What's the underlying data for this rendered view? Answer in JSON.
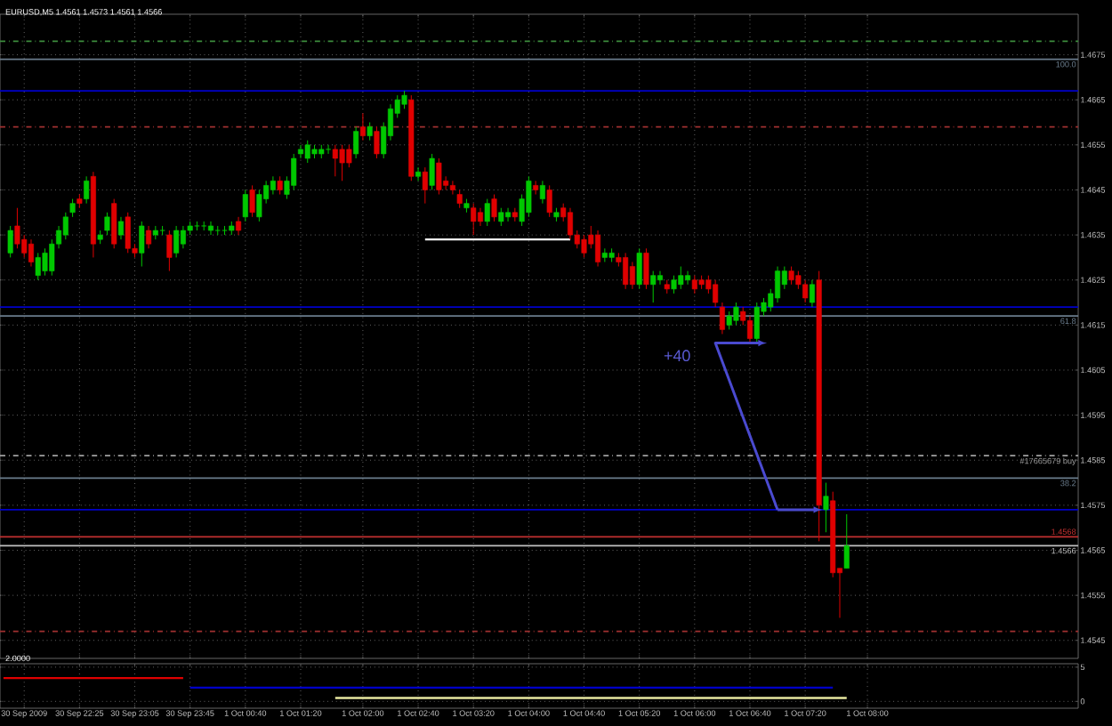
{
  "chart_data": [
    {
      "type": "candlestick",
      "title": "EURUSD,M5 1.4561 1.4573 1.4561 1.4566",
      "categories": [
        null,
        null,
        null,
        null,
        null,
        null,
        null,
        null,
        null,
        null,
        null,
        null,
        null,
        null,
        null,
        null,
        null,
        null,
        null,
        null,
        null,
        null,
        null,
        null,
        null,
        null,
        null,
        null,
        null,
        null,
        null,
        null,
        null,
        null,
        null,
        null,
        null,
        null,
        null,
        null,
        null,
        null,
        null,
        null,
        null,
        null,
        null,
        null,
        null,
        null,
        null,
        null,
        null,
        null,
        null,
        null,
        null,
        null,
        null,
        null,
        null,
        null,
        null,
        null,
        null,
        null,
        null,
        null,
        null,
        null,
        null,
        null,
        null,
        null,
        null,
        null,
        null,
        null,
        null,
        null,
        null,
        null,
        null,
        null,
        null,
        null,
        null,
        null,
        null,
        null,
        null,
        null,
        null,
        null,
        null,
        null,
        null,
        null,
        null,
        null,
        null,
        null,
        null,
        null,
        null,
        null,
        null,
        null,
        null,
        null,
        null,
        null,
        null,
        null,
        null,
        null,
        null,
        null,
        null,
        null,
        null,
        null,
        null,
        null,
        null,
        null,
        null,
        null,
        null,
        null,
        null,
        null,
        null,
        null,
        null,
        null,
        null,
        null,
        null,
        null,
        null,
        null,
        null,
        null,
        null,
        null,
        null,
        null,
        null,
        null,
        null,
        null,
        null,
        null,
        null,
        null
      ],
      "ohlc": [
        null,
        [
          1.4631,
          1.4637,
          1.463,
          1.4636
        ],
        [
          1.4637,
          1.4641,
          1.4632,
          1.4633
        ],
        [
          1.4634,
          1.4635,
          1.463,
          1.4631
        ],
        [
          1.4633,
          1.4634,
          1.4628,
          1.4629
        ],
        [
          1.4626,
          1.4631,
          1.4625,
          1.463
        ],
        [
          1.4627,
          1.4632,
          1.4626,
          1.4631
        ],
        [
          1.4627,
          1.4634,
          1.4626,
          1.4633
        ],
        [
          1.4633,
          1.4637,
          1.4632,
          1.4636
        ],
        [
          1.4635,
          1.464,
          1.4634,
          1.4639
        ],
        [
          1.464,
          1.4643,
          1.4639,
          1.4642
        ],
        [
          1.4643,
          1.4644,
          1.4641,
          1.4642
        ],
        [
          1.4643,
          1.4648,
          1.4642,
          1.4647
        ],
        [
          1.4648,
          1.4649,
          1.463,
          1.4633
        ],
        [
          1.4634,
          1.4636,
          1.4633,
          1.4635
        ],
        [
          1.4636,
          1.464,
          1.4635,
          1.4639
        ],
        [
          1.4642,
          1.4643,
          1.4632,
          1.4633
        ],
        [
          1.4635,
          1.4639,
          1.4634,
          1.4638
        ],
        [
          1.4639,
          1.464,
          1.4631,
          1.4632
        ],
        [
          1.4632,
          1.4633,
          1.463,
          1.4631
        ],
        [
          1.4631,
          1.4638,
          1.4628,
          1.4637
        ],
        [
          1.4636,
          1.4637,
          1.4632,
          1.4633
        ],
        [
          1.4635,
          1.4637,
          1.4634,
          1.4636
        ],
        [
          1.4636,
          1.4637,
          1.4635,
          1.4636
        ],
        [
          1.4635,
          1.4636,
          1.4627,
          1.463
        ],
        [
          1.4631,
          1.4637,
          1.463,
          1.4636
        ],
        [
          1.4633,
          1.4637,
          1.4632,
          1.4636
        ],
        [
          1.4636,
          1.4638,
          1.4635,
          1.4637
        ],
        [
          1.4637,
          1.4638,
          1.4636,
          1.4637
        ],
        [
          1.4637,
          1.4638,
          1.4636,
          1.4637
        ],
        [
          1.4636,
          1.4638,
          1.4635,
          1.4637
        ],
        [
          1.4636,
          1.4637,
          1.4635,
          1.4636
        ],
        [
          1.4636,
          1.4637,
          1.4635,
          1.4636
        ],
        [
          1.4636,
          1.4638,
          1.4635,
          1.4637
        ],
        [
          1.4638,
          1.4639,
          1.4635,
          1.4636
        ],
        [
          1.4639,
          1.4645,
          1.4638,
          1.4644
        ],
        [
          1.4645,
          1.4646,
          1.4639,
          1.464
        ],
        [
          1.4639,
          1.4645,
          1.4638,
          1.4644
        ],
        [
          1.4643,
          1.4647,
          1.4642,
          1.4646
        ],
        [
          1.4645,
          1.4648,
          1.4644,
          1.4647
        ],
        [
          1.4647,
          1.4648,
          1.4644,
          1.4645
        ],
        [
          1.4644,
          1.4648,
          1.4643,
          1.4647
        ],
        [
          1.4646,
          1.4653,
          1.4645,
          1.4652
        ],
        [
          1.4653,
          1.4655,
          1.4652,
          1.4654
        ],
        [
          1.4652,
          1.4656,
          1.4651,
          1.4655
        ],
        [
          1.4653,
          1.4655,
          1.4652,
          1.4654
        ],
        [
          1.4653,
          1.4655,
          1.4652,
          1.4654
        ],
        [
          1.4654,
          1.4655,
          1.4653,
          1.4654
        ],
        [
          1.4654,
          1.4655,
          1.4648,
          1.4652
        ],
        [
          1.4654,
          1.4655,
          1.4647,
          1.4651
        ],
        [
          1.4654,
          1.4655,
          1.465,
          1.4651
        ],
        [
          1.4653,
          1.4659,
          1.4652,
          1.4658
        ],
        [
          1.4659,
          1.4662,
          1.4656,
          1.4657
        ],
        [
          1.4657,
          1.466,
          1.4656,
          1.4659
        ],
        [
          1.4658,
          1.4659,
          1.4652,
          1.4653
        ],
        [
          1.4653,
          1.466,
          1.4652,
          1.4659
        ],
        [
          1.4657,
          1.4664,
          1.4656,
          1.4663
        ],
        [
          1.4662,
          1.4666,
          1.4661,
          1.4665
        ],
        [
          1.4664,
          1.4667,
          1.4663,
          1.4666
        ],
        [
          1.4665,
          1.4666,
          1.4647,
          1.4648
        ],
        [
          1.4648,
          1.465,
          1.4647,
          1.4649
        ],
        [
          1.4649,
          1.465,
          1.4642,
          1.4645
        ],
        [
          1.4646,
          1.4653,
          1.4645,
          1.4652
        ],
        [
          1.4651,
          1.4652,
          1.4644,
          1.4645
        ],
        [
          1.4647,
          1.4648,
          1.4645,
          1.4646
        ],
        [
          1.4646,
          1.4647,
          1.4644,
          1.4645
        ],
        [
          1.4644,
          1.4645,
          1.4641,
          1.4642
        ],
        [
          1.4641,
          1.4643,
          1.464,
          1.4642
        ],
        [
          1.4641,
          1.4642,
          1.4635,
          1.4638
        ],
        [
          1.464,
          1.4641,
          1.4637,
          1.4638
        ],
        [
          1.4638,
          1.4643,
          1.4637,
          1.4642
        ],
        [
          1.4643,
          1.4644,
          1.4638,
          1.4639
        ],
        [
          1.4638,
          1.4641,
          1.4637,
          1.464
        ],
        [
          1.4639,
          1.4641,
          1.4638,
          1.464
        ],
        [
          1.464,
          1.4641,
          1.4638,
          1.4639
        ],
        [
          1.4638,
          1.4644,
          1.4637,
          1.4643
        ],
        [
          1.464,
          1.4648,
          1.4639,
          1.4647
        ],
        [
          1.4646,
          1.4647,
          1.4644,
          1.4645
        ],
        [
          1.4643,
          1.4647,
          1.4642,
          1.4646
        ],
        [
          1.4645,
          1.4646,
          1.4639,
          1.464
        ],
        [
          1.4639,
          1.4641,
          1.4638,
          1.464
        ],
        [
          1.4641,
          1.4642,
          1.4638,
          1.4639
        ],
        [
          1.464,
          1.4641,
          1.4634,
          1.4635
        ],
        [
          1.4635,
          1.4636,
          1.4632,
          1.4633
        ],
        [
          1.4634,
          1.4635,
          1.463,
          1.4631
        ],
        [
          1.4635,
          1.4637,
          1.4632,
          1.4633
        ],
        [
          1.4635,
          1.4636,
          1.4628,
          1.4629
        ],
        [
          1.463,
          1.4632,
          1.4629,
          1.4631
        ],
        [
          1.463,
          1.4632,
          1.4629,
          1.4631
        ],
        [
          1.463,
          1.4631,
          1.4628,
          1.4629
        ],
        [
          1.463,
          1.4631,
          1.4623,
          1.4624
        ],
        [
          1.4628,
          1.4629,
          1.4623,
          1.4624
        ],
        [
          1.4624,
          1.4632,
          1.4623,
          1.4631
        ],
        [
          1.4631,
          1.4632,
          1.4623,
          1.4624
        ],
        [
          1.4624,
          1.4627,
          1.462,
          1.4626
        ],
        [
          1.4625,
          1.4627,
          1.4624,
          1.4626
        ],
        [
          1.4624,
          1.4625,
          1.4622,
          1.4623
        ],
        [
          1.4623,
          1.4626,
          1.4622,
          1.4625
        ],
        [
          1.4624,
          1.4628,
          1.4623,
          1.4626
        ],
        [
          1.4625,
          1.4627,
          1.4624,
          1.4626
        ],
        [
          1.4625,
          1.4626,
          1.4622,
          1.4623
        ],
        [
          1.4625,
          1.4626,
          1.4623,
          1.4624
        ],
        [
          1.4625,
          1.4626,
          1.4622,
          1.4623
        ],
        [
          1.4624,
          1.4625,
          1.4619,
          1.462
        ],
        [
          1.4619,
          1.462,
          1.4613,
          1.4614
        ],
        [
          1.4615,
          1.4618,
          1.4614,
          1.4617
        ],
        [
          1.4616,
          1.462,
          1.4615,
          1.4619
        ],
        [
          1.4618,
          1.4619,
          1.4615,
          1.4616
        ],
        [
          1.4616,
          1.4617,
          1.4611,
          1.4612
        ],
        [
          1.4612,
          1.462,
          1.4611,
          1.4619
        ],
        [
          1.4618,
          1.4621,
          1.4617,
          1.462
        ],
        [
          1.4619,
          1.4623,
          1.4618,
          1.4622
        ],
        [
          1.4621,
          1.4628,
          1.462,
          1.4627
        ],
        [
          1.4624,
          1.4628,
          1.4623,
          1.4627
        ],
        [
          1.4627,
          1.4628,
          1.4624,
          1.4625
        ],
        [
          1.4626,
          1.4627,
          1.4623,
          1.4624
        ],
        [
          1.4624,
          1.4625,
          1.462,
          1.4621
        ],
        [
          1.462,
          1.4625,
          1.4619,
          1.4624
        ],
        [
          1.4625,
          1.4627,
          1.4567,
          1.4575
        ],
        [
          1.4574,
          1.458,
          1.4569,
          1.4577
        ],
        [
          1.4576,
          1.4578,
          1.4559,
          1.456
        ],
        [
          1.4561,
          1.4561,
          1.455,
          1.456
        ],
        [
          1.4561,
          1.4573,
          1.4561,
          1.4566
        ],
        null,
        null,
        null,
        null,
        null,
        null,
        null,
        null,
        null,
        null,
        null,
        null,
        null,
        null,
        null,
        null,
        null,
        null,
        null,
        null,
        null,
        null,
        null,
        null,
        null,
        null,
        null,
        null,
        null,
        null,
        null,
        null,
        null
      ],
      "colors": [
        null,
        "#00c800",
        "#e00000",
        "#e00000",
        "#e00000",
        "#00c800",
        "#00c800",
        "#00c800",
        "#00c800",
        "#00c800",
        "#00c800",
        "#e00000",
        "#00c800",
        "#e00000",
        "#00c800",
        "#00c800",
        "#e00000",
        "#00c800",
        "#e00000",
        "#e00000",
        "#00c800",
        "#e00000",
        "#00c800",
        "#00c800",
        "#e00000",
        "#00c800",
        "#00c800",
        "#00c800",
        "#00c800",
        "#00c800",
        "#00c800",
        "#00c800",
        "#00c800",
        "#00c800",
        "#e00000",
        "#00c800",
        "#e00000",
        "#00c800",
        "#00c800",
        "#00c800",
        "#e00000",
        "#00c800",
        "#00c800",
        "#00c800",
        "#00c800",
        "#00c800",
        "#00c800",
        "#00c800",
        "#e00000",
        "#e00000",
        "#e00000",
        "#00c800",
        "#e00000",
        "#00c800",
        "#e00000",
        "#00c800",
        "#00c800",
        "#00c800",
        "#00c800",
        "#e00000",
        "#00c800",
        "#e00000",
        "#00c800",
        "#e00000",
        "#e00000",
        "#e00000",
        "#e00000",
        "#00c800",
        "#e00000",
        "#e00000",
        "#00c800",
        "#e00000",
        "#00c800",
        "#00c800",
        "#e00000",
        "#00c800",
        "#00c800",
        "#e00000",
        "#00c800",
        "#e00000",
        "#00c800",
        "#e00000",
        "#e00000",
        "#e00000",
        "#e00000",
        "#e00000",
        "#e00000",
        "#00c800",
        "#00c800",
        "#e00000",
        "#e00000",
        "#e00000",
        "#00c800",
        "#e00000",
        "#00c800",
        "#00c800",
        "#e00000",
        "#00c800",
        "#00c800",
        "#00c800",
        "#e00000",
        "#e00000",
        "#e00000",
        "#e00000",
        "#e00000",
        "#00c800",
        "#00c800",
        "#e00000",
        "#e00000",
        "#00c800",
        "#00c800",
        "#00c800",
        "#00c800",
        "#00c800",
        "#e00000",
        "#e00000",
        "#e00000",
        "#00c800",
        "#e00000",
        "#00c800",
        "#e00000",
        "#e00000",
        "#00c800",
        null,
        null,
        null,
        null,
        null,
        null,
        null,
        null,
        null,
        null,
        null,
        null,
        null,
        null,
        null,
        null,
        null,
        null,
        null,
        null,
        null,
        null,
        null,
        null,
        null,
        null,
        null,
        null,
        null,
        null,
        null,
        null,
        null
      ],
      "series": [
        {
          "type": "line",
          "color": "#ffffff",
          "values": [
            null,
            null,
            null,
            null,
            null,
            null,
            null,
            null,
            null,
            null,
            null,
            null,
            null,
            null,
            null,
            null,
            null,
            null,
            null,
            null,
            null,
            null,
            null,
            null,
            null,
            null,
            null,
            null,
            null,
            null,
            null,
            null,
            null,
            null,
            null,
            null,
            null,
            null,
            null,
            null,
            null,
            null,
            null,
            null,
            null,
            null,
            null,
            null,
            null,
            null,
            null,
            null,
            null,
            null,
            null,
            null,
            null,
            null,
            null,
            null,
            null,
            1.4634,
            1.4634,
            1.4634,
            1.4634,
            1.4634,
            1.4634,
            1.4634,
            1.4634,
            1.4634,
            1.4634,
            1.4634,
            1.4634,
            1.4634,
            1.4634,
            1.4634,
            1.4634,
            1.4634,
            1.4634,
            1.4634,
            1.4634,
            1.4634,
            1.4634,
            null,
            null,
            null,
            null,
            null,
            null,
            null,
            null,
            null,
            null,
            null,
            null,
            null,
            null,
            null,
            null,
            null,
            null,
            null,
            null,
            null,
            null,
            null,
            null,
            null,
            null,
            null,
            null,
            null,
            null,
            null,
            null,
            null,
            null,
            null,
            null,
            null,
            null,
            null,
            null,
            null,
            null,
            null,
            null,
            null,
            null,
            null,
            null,
            null,
            null,
            null,
            null,
            null,
            null,
            null,
            null,
            null,
            null,
            null,
            null,
            null,
            null,
            null,
            null,
            null,
            null,
            null,
            null,
            null,
            null,
            null,
            null,
            null
          ]
        }
      ],
      "ylim": [
        1.4541,
        1.4684
      ],
      "yticks": [
        1.4545,
        1.4555,
        1.4565,
        1.4575,
        1.4585,
        1.4595,
        1.4605,
        1.4615,
        1.4625,
        1.4635,
        1.4645,
        1.4655,
        1.4665,
        1.4675
      ],
      "grid": true,
      "tick_labels": "y",
      "ref_lines": [
        {
          "axis": "y",
          "value": 1.4678,
          "color": "#3c8c3c",
          "line_style": "dashed"
        },
        {
          "axis": "y",
          "value": 1.4674,
          "color": "#6a7c8c"
        },
        {
          "axis": "y",
          "value": 1.4667,
          "color": "#0000c8"
        },
        {
          "axis": "y",
          "value": 1.4659,
          "color": "#a03030",
          "line_style": "dashed"
        },
        {
          "axis": "y",
          "value": 1.4619,
          "color": "#0000c8"
        },
        {
          "axis": "y",
          "value": 1.4617,
          "color": "#6a7c8c"
        },
        {
          "axis": "y",
          "value": 1.4586,
          "label": "#17665679 buy",
          "color": "#a0a0a0",
          "line_style": "dashed"
        },
        {
          "axis": "y",
          "value": 1.4581,
          "color": "#6a7c8c"
        },
        {
          "axis": "y",
          "value": 1.4574,
          "color": "#0000c8"
        },
        {
          "axis": "y",
          "value": 1.4568,
          "label": "1.4568",
          "color": "#c03030"
        },
        {
          "axis": "y",
          "value": 1.4566,
          "label": "1.4566",
          "color": "#c0c0c0"
        },
        {
          "axis": "y",
          "value": 1.4547,
          "color": "#a03030",
          "line_style": "dashed"
        }
      ],
      "annotations": [
        "+40",
        {
          "text": "100.0",
          "y": 1.4674
        },
        {
          "text": "61.8",
          "y": 1.4617
        },
        {
          "text": "38.2",
          "y": 1.4581
        }
      ]
    },
    {
      "type": "line",
      "title": "2.0000",
      "categories": [
        null,
        null,
        null,
        "30 Sep 2009",
        null,
        null,
        null,
        null,
        null,
        null,
        null,
        "30 Sep 22:25",
        null,
        null,
        null,
        null,
        null,
        null,
        null,
        "30 Sep 23:05",
        null,
        null,
        null,
        null,
        null,
        null,
        null,
        "30 Sep 23:45",
        null,
        null,
        null,
        null,
        null,
        null,
        null,
        "1 Oct 00:40",
        null,
        null,
        null,
        null,
        null,
        null,
        null,
        "1 Oct 01:20",
        null,
        null,
        null,
        null,
        null,
        null,
        null,
        null,
        "1 Oct 02:00",
        null,
        null,
        null,
        null,
        null,
        null,
        null,
        "1 Oct 02:40",
        null,
        null,
        null,
        null,
        null,
        null,
        null,
        "1 Oct 03:20",
        null,
        null,
        null,
        null,
        null,
        null,
        null,
        "1 Oct 04:00",
        null,
        null,
        null,
        null,
        null,
        null,
        null,
        "1 Oct 04:40",
        null,
        null,
        null,
        null,
        null,
        null,
        null,
        "1 Oct 05:20",
        null,
        null,
        null,
        null,
        null,
        null,
        null,
        "1 Oct 06:00",
        null,
        null,
        null,
        null,
        null,
        null,
        null,
        "1 Oct 06:40",
        null,
        null,
        null,
        null,
        null,
        null,
        null,
        "1 Oct 07:20",
        null,
        null,
        null,
        null,
        null,
        null,
        null,
        null,
        "1 Oct 08:00",
        null,
        null,
        null,
        null,
        null,
        null,
        null,
        null,
        null,
        null,
        null,
        null,
        null,
        null,
        null,
        null,
        null,
        null,
        null,
        null,
        null,
        null,
        null,
        null,
        null,
        null,
        null,
        null,
        null,
        null
      ],
      "series": [
        {
          "color": "#e00000",
          "values": [
            3.4,
            3.4,
            3.4,
            3.4,
            3.4,
            3.4,
            3.4,
            3.4,
            3.4,
            3.4,
            3.4,
            3.4,
            3.4,
            3.4,
            3.4,
            3.4,
            3.4,
            3.4,
            3.4,
            3.4,
            3.4,
            3.4,
            3.4,
            3.4,
            3.4,
            3.4,
            3.4,
            null,
            null,
            null,
            null,
            null,
            null,
            null,
            null,
            null,
            null,
            null,
            null,
            null,
            null,
            null,
            null,
            null,
            null,
            null,
            null,
            null,
            null,
            null,
            null,
            null,
            null,
            null,
            null,
            null,
            null,
            null,
            null,
            null,
            null,
            null,
            null,
            null,
            null,
            null,
            null,
            null,
            null,
            null,
            null,
            null,
            null,
            null,
            null,
            null,
            null,
            null,
            null,
            null,
            null,
            null,
            null,
            null,
            null,
            null,
            null,
            null,
            null,
            null,
            null,
            null,
            null,
            null,
            null,
            null,
            null,
            null,
            null,
            null,
            null,
            null,
            null,
            null,
            null,
            null,
            null,
            null,
            null,
            null,
            null,
            null,
            null,
            null,
            null,
            null,
            null,
            null,
            null,
            null,
            null,
            null,
            null,
            null,
            null,
            null,
            null,
            null,
            null,
            null,
            null,
            null,
            null,
            null,
            null,
            null,
            null,
            null,
            null,
            null,
            null,
            null,
            null,
            null,
            null,
            null,
            null,
            null,
            null,
            null,
            null,
            null,
            null,
            null,
            null,
            null
          ]
        },
        {
          "color": "#0000c8",
          "values": [
            null,
            null,
            null,
            null,
            null,
            null,
            null,
            null,
            null,
            null,
            null,
            null,
            null,
            null,
            null,
            null,
            null,
            null,
            null,
            null,
            null,
            null,
            null,
            null,
            null,
            null,
            null,
            2,
            2,
            2,
            2,
            2,
            2,
            2,
            2,
            2,
            2,
            2,
            2,
            2,
            2,
            2,
            2,
            2,
            2,
            2,
            2,
            2,
            2,
            2,
            2,
            2,
            2,
            2,
            2,
            2,
            2,
            2,
            2,
            2,
            2,
            2,
            2,
            2,
            2,
            2,
            2,
            2,
            2,
            2,
            2,
            2,
            2,
            2,
            2,
            2,
            2,
            2,
            2,
            2,
            2,
            2,
            2,
            2,
            2,
            2,
            2,
            2,
            2,
            2,
            2,
            2,
            2,
            2,
            2,
            2,
            2,
            2,
            2,
            2,
            2,
            2,
            2,
            2,
            2,
            2,
            2,
            2,
            2,
            2,
            2,
            2,
            2,
            2,
            2,
            2,
            2,
            2,
            2,
            2,
            2,
            null,
            null,
            null,
            null,
            null,
            null,
            null,
            null,
            null,
            null,
            null,
            null,
            null,
            null,
            null,
            null,
            null,
            null,
            null,
            null,
            null,
            null,
            null,
            null,
            null,
            null,
            null,
            null,
            null,
            null,
            null,
            null,
            null,
            null,
            null
          ]
        },
        {
          "color": "#e8e8a0",
          "values": [
            null,
            null,
            null,
            null,
            null,
            null,
            null,
            null,
            null,
            null,
            null,
            null,
            null,
            null,
            null,
            null,
            null,
            null,
            null,
            null,
            null,
            null,
            null,
            null,
            null,
            null,
            null,
            null,
            null,
            null,
            null,
            null,
            null,
            null,
            null,
            null,
            null,
            null,
            null,
            null,
            null,
            null,
            null,
            null,
            null,
            null,
            null,
            null,
            0.5,
            0.5,
            0.5,
            0.5,
            0.5,
            0.5,
            0.5,
            0.5,
            0.5,
            0.5,
            0.5,
            0.5,
            0.5,
            0.5,
            0.5,
            0.5,
            0.5,
            0.5,
            0.5,
            0.5,
            0.5,
            0.5,
            0.5,
            0.5,
            0.5,
            0.5,
            0.5,
            0.5,
            0.5,
            0.5,
            0.5,
            0.5,
            0.5,
            0.5,
            0.5,
            0.5,
            0.5,
            0.5,
            0.5,
            0.5,
            0.5,
            0.5,
            0.5,
            0.5,
            0.5,
            0.5,
            0.5,
            0.5,
            0.5,
            0.5,
            0.5,
            0.5,
            0.5,
            0.5,
            0.5,
            0.5,
            0.5,
            0.5,
            0.5,
            0.5,
            0.5,
            0.5,
            0.5,
            0.5,
            0.5,
            0.5,
            0.5,
            0.5,
            0.5,
            0.5,
            0.5,
            0.5,
            0.5,
            0.5,
            0.5,
            null,
            null,
            null,
            null,
            null,
            null,
            null,
            null,
            null,
            null,
            null,
            null,
            null,
            null,
            null,
            null,
            null,
            null,
            null,
            null,
            null,
            null,
            null,
            null,
            null,
            null,
            null,
            null,
            null,
            null,
            null,
            null,
            null
          ]
        }
      ],
      "ylim": [
        -1,
        5.5
      ],
      "yticks": [
        0,
        5
      ],
      "grid": true
    }
  ]
}
